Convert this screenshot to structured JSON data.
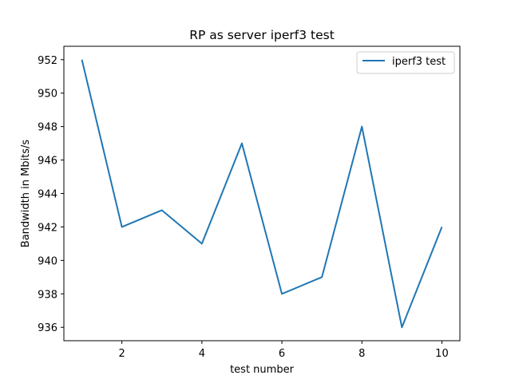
{
  "chart_data": {
    "type": "line",
    "title": "RP as server iperf3 test",
    "xlabel": "test number",
    "ylabel": "Bandwidth in Mbits/s",
    "xlim": [
      0.55,
      10.45
    ],
    "ylim": [
      935.2,
      952.8
    ],
    "xticks": [
      2,
      4,
      6,
      8,
      10
    ],
    "yticks": [
      936,
      938,
      940,
      942,
      944,
      946,
      948,
      950,
      952
    ],
    "grid": false,
    "legend_position": "top-right",
    "series": [
      {
        "name": "iperf3 test",
        "color": "#1f77b4",
        "x": [
          1,
          2,
          3,
          4,
          5,
          6,
          7,
          8,
          9,
          10
        ],
        "y": [
          952,
          942,
          943,
          941,
          947,
          938,
          939,
          948,
          936,
          942
        ]
      }
    ]
  }
}
